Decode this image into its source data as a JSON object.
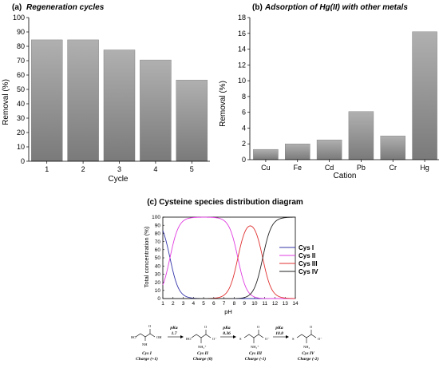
{
  "chart_data": [
    {
      "id": "a",
      "type": "bar",
      "title_prefix": "(a)",
      "title": "Regeneration cycles",
      "xlabel": "Cycle",
      "ylabel": "Removal (%)",
      "categories": [
        "1",
        "2",
        "3",
        "4",
        "5"
      ],
      "values": [
        84.5,
        84.5,
        77.5,
        70.5,
        56.5
      ],
      "ylim": [
        0,
        100
      ],
      "yticks": [
        "0",
        "10",
        "20",
        "30",
        "40",
        "50",
        "60",
        "70",
        "80",
        "90",
        "100"
      ],
      "bar_color": "#b3b3b3",
      "grid": false
    },
    {
      "id": "b",
      "type": "bar",
      "title_prefix": "(b)",
      "title": "Adsorption of Hg(II) with other metals",
      "xlabel": "Cation",
      "ylabel": "Removal (%)",
      "categories": [
        "Cu",
        "Fe",
        "Cd",
        "Pb",
        "Cr",
        "Hg"
      ],
      "values": [
        1.3,
        2.0,
        2.5,
        6.1,
        3.0,
        16.2
      ],
      "ylim": [
        0,
        18
      ],
      "yticks": [
        "0",
        "2",
        "4",
        "6",
        "8",
        "10",
        "12",
        "14",
        "16",
        "18"
      ],
      "bar_color": "#b3b3b3",
      "grid": false
    },
    {
      "id": "c",
      "type": "line",
      "title": "(c) Cysteine species distribution diagram",
      "xlabel": "pH",
      "ylabel": "Total concentration (%)",
      "xlim": [
        1,
        14
      ],
      "ylim": [
        0,
        100
      ],
      "xticks": [
        "1",
        "2",
        "3",
        "4",
        "5",
        "6",
        "7",
        "8",
        "9",
        "10",
        "11",
        "12",
        "13",
        "14"
      ],
      "yticks": [
        "0",
        "10",
        "20",
        "30",
        "40",
        "50",
        "60",
        "70",
        "80",
        "90",
        "100"
      ],
      "legend_position": "right",
      "pKa": [
        1.7,
        8.36,
        10.8
      ],
      "series": [
        {
          "name": "Cys I",
          "color": "#3333aa"
        },
        {
          "name": "Cys II",
          "color": "#e03ce0"
        },
        {
          "name": "Cys III",
          "color": "#e03030"
        },
        {
          "name": "Cys IV",
          "color": "#222222"
        }
      ]
    }
  ],
  "scheme": {
    "species": [
      {
        "name": "Cys I",
        "charge": "Charge (+1)"
      },
      {
        "name": "Cys II",
        "charge": "Charge (0)"
      },
      {
        "name": "Cys III",
        "charge": "Charge (-1)"
      },
      {
        "name": "Cys IV",
        "charge": "Charge (-2)"
      }
    ],
    "steps": [
      {
        "label": "pKa",
        "value": "1.7"
      },
      {
        "label": "pKa",
        "value": "8.36"
      },
      {
        "label": "pKa",
        "value": "10.8"
      }
    ]
  }
}
